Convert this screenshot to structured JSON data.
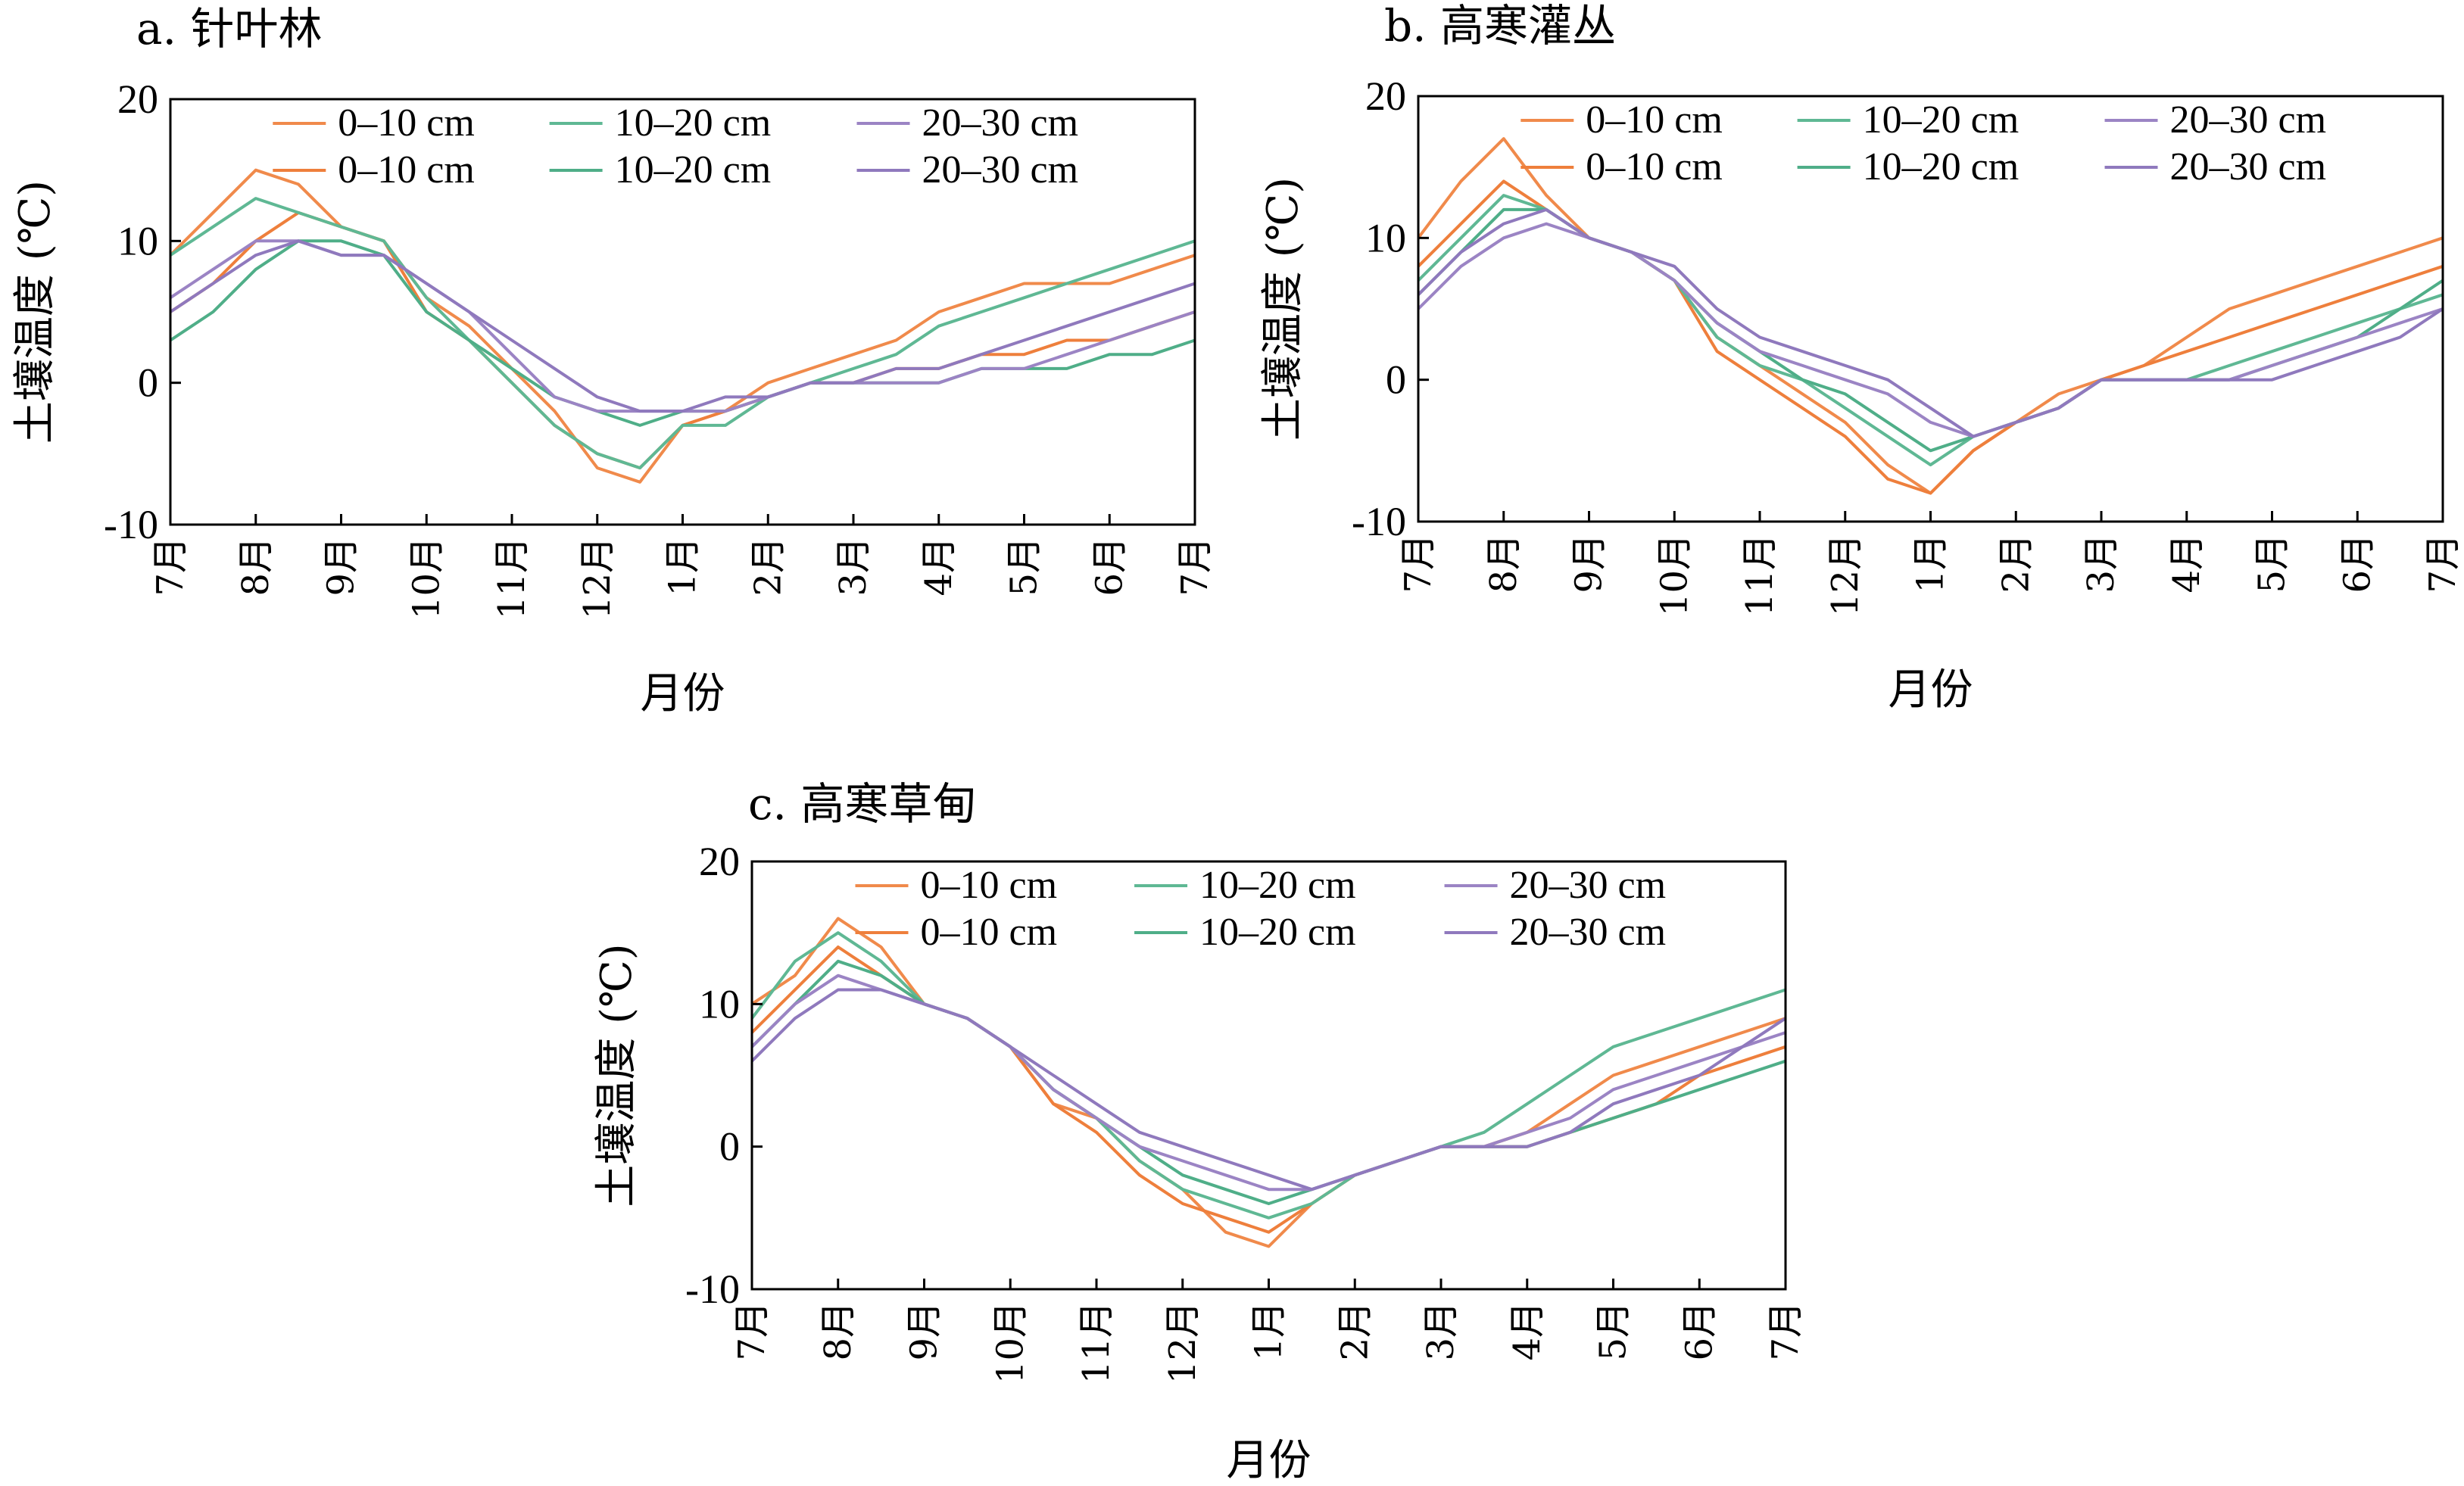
{
  "figure": {
    "xlabel": "月份",
    "ylabel": "土壤温度 (℃)"
  },
  "chart_data": [
    {
      "type": "line",
      "title": "a. 针叶林",
      "xlabel": "月份",
      "ylabel": "土壤温度 (℃)",
      "ylim": [
        -10,
        20
      ],
      "yticks": [
        -10,
        0,
        10,
        20
      ],
      "categories": [
        "7月",
        "8月",
        "9月",
        "10月",
        "11月",
        "12月",
        "1月",
        "2月",
        "3月",
        "4月",
        "5月",
        "6月",
        "7月"
      ],
      "legend": "top-right",
      "series": [
        {
          "name": "0–10 cm",
          "color": "#f08a4b",
          "x": [
            0,
            0.5,
            1,
            1.5,
            2,
            2.5,
            3,
            3.5,
            4,
            4.5,
            5,
            5.5,
            6,
            6.5,
            7,
            7.5,
            8,
            8.5,
            9,
            9.5,
            10,
            10.5,
            11,
            11.5,
            12
          ],
          "values": [
            9,
            12,
            15,
            14,
            11,
            10,
            6,
            4,
            1,
            -2,
            -6,
            -7,
            -3,
            -2,
            0,
            1,
            2,
            3,
            5,
            6,
            7,
            7,
            7,
            8,
            9
          ]
        },
        {
          "name": "0–10 cm",
          "color": "#ee7f3c",
          "x": [
            0,
            0.5,
            1,
            1.5,
            2,
            2.5,
            3,
            3.5,
            4,
            4.5,
            5,
            5.5,
            6,
            6.5,
            7,
            7.5,
            8,
            8.5,
            9,
            9.5,
            10,
            10.5,
            11,
            11.5,
            12
          ],
          "values": [
            5,
            7,
            10,
            12,
            11,
            10,
            5,
            3,
            0,
            -3,
            -5,
            -6,
            -3,
            -2,
            -1,
            0,
            0,
            1,
            1,
            2,
            2,
            3,
            3,
            4,
            5
          ]
        },
        {
          "name": "10–20 cm",
          "color": "#5fb894",
          "x": [
            0,
            0.5,
            1,
            1.5,
            2,
            2.5,
            3,
            3.5,
            4,
            4.5,
            5,
            5.5,
            6,
            6.5,
            7,
            7.5,
            8,
            8.5,
            9,
            9.5,
            10,
            10.5,
            11,
            11.5,
            12
          ],
          "values": [
            9,
            11,
            13,
            12,
            11,
            10,
            6,
            3,
            0,
            -3,
            -5,
            -6,
            -3,
            -3,
            -1,
            0,
            1,
            2,
            4,
            5,
            6,
            7,
            8,
            9,
            10
          ]
        },
        {
          "name": "10–20 cm",
          "color": "#4fae88",
          "x": [
            0,
            0.5,
            1,
            1.5,
            2,
            2.5,
            3,
            3.5,
            4,
            4.5,
            5,
            5.5,
            6,
            6.5,
            7,
            7.5,
            8,
            8.5,
            9,
            9.5,
            10,
            10.5,
            11,
            11.5,
            12
          ],
          "values": [
            3,
            5,
            8,
            10,
            10,
            9,
            5,
            3,
            1,
            -1,
            -2,
            -3,
            -2,
            -2,
            -1,
            0,
            0,
            0,
            0,
            1,
            1,
            1,
            2,
            2,
            3
          ]
        },
        {
          "name": "20–30 cm",
          "color": "#9b84c4",
          "x": [
            0,
            0.5,
            1,
            1.5,
            2,
            2.5,
            3,
            3.5,
            4,
            4.5,
            5,
            5.5,
            6,
            6.5,
            7,
            7.5,
            8,
            8.5,
            9,
            9.5,
            10,
            10.5,
            11,
            11.5,
            12
          ],
          "values": [
            6,
            8,
            10,
            10,
            9,
            9,
            7,
            5,
            2,
            -1,
            -2,
            -2,
            -2,
            -2,
            -1,
            0,
            0,
            0,
            0,
            1,
            1,
            2,
            3,
            4,
            5
          ]
        },
        {
          "name": "20–30 cm",
          "color": "#8f79bd",
          "x": [
            0,
            0.5,
            1,
            1.5,
            2,
            2.5,
            3,
            3.5,
            4,
            4.5,
            5,
            5.5,
            6,
            6.5,
            7,
            7.5,
            8,
            8.5,
            9,
            9.5,
            10,
            10.5,
            11,
            11.5,
            12
          ],
          "values": [
            5,
            7,
            9,
            10,
            9,
            9,
            7,
            5,
            3,
            1,
            -1,
            -2,
            -2,
            -1,
            -1,
            0,
            0,
            1,
            1,
            2,
            3,
            4,
            5,
            6,
            7
          ]
        }
      ]
    },
    {
      "type": "line",
      "title": "b. 高寒灌丛",
      "xlabel": "月份",
      "ylabel": "土壤温度 (℃)",
      "ylim": [
        -10,
        20
      ],
      "yticks": [
        -10,
        0,
        10,
        20
      ],
      "categories": [
        "7月",
        "8月",
        "9月",
        "10月",
        "11月",
        "12月",
        "1月",
        "2月",
        "3月",
        "4月",
        "5月",
        "6月",
        "7月"
      ],
      "legend": "top-right",
      "series": [
        {
          "name": "0–10 cm",
          "color": "#f08a4b",
          "x": [
            0,
            0.5,
            1,
            1.5,
            2,
            2.5,
            3,
            3.5,
            4,
            4.5,
            5,
            5.5,
            6,
            6.5,
            7,
            7.5,
            8,
            8.5,
            9,
            9.5,
            10,
            10.5,
            11,
            11.5,
            12
          ],
          "values": [
            10,
            14,
            17,
            13,
            10,
            9,
            7,
            3,
            1,
            -1,
            -3,
            -6,
            -8,
            -5,
            -3,
            -1,
            0,
            1,
            3,
            5,
            6,
            7,
            8,
            9,
            10
          ]
        },
        {
          "name": "0–10 cm",
          "color": "#ee7f3c",
          "x": [
            0,
            0.5,
            1,
            1.5,
            2,
            2.5,
            3,
            3.5,
            4,
            4.5,
            5,
            5.5,
            6,
            6.5,
            7,
            7.5,
            8,
            8.5,
            9,
            9.5,
            10,
            10.5,
            11,
            11.5,
            12
          ],
          "values": [
            8,
            11,
            14,
            12,
            10,
            9,
            7,
            2,
            0,
            -2,
            -4,
            -7,
            -8,
            -5,
            -3,
            -2,
            0,
            1,
            2,
            3,
            4,
            5,
            6,
            7,
            8
          ]
        },
        {
          "name": "10–20 cm",
          "color": "#5fb894",
          "x": [
            0,
            0.5,
            1,
            1.5,
            2,
            2.5,
            3,
            3.5,
            4,
            4.5,
            5,
            5.5,
            6,
            6.5,
            7,
            7.5,
            8,
            8.5,
            9,
            9.5,
            10,
            10.5,
            11,
            11.5,
            12
          ],
          "values": [
            7,
            10,
            13,
            12,
            10,
            9,
            7,
            3,
            1,
            0,
            -2,
            -4,
            -6,
            -4,
            -3,
            -2,
            0,
            0,
            0,
            1,
            2,
            3,
            4,
            5,
            6
          ]
        },
        {
          "name": "10–20 cm",
          "color": "#4fae88",
          "x": [
            0,
            0.5,
            1,
            1.5,
            2,
            2.5,
            3,
            3.5,
            4,
            4.5,
            5,
            5.5,
            6,
            6.5,
            7,
            7.5,
            8,
            8.5,
            9,
            9.5,
            10,
            10.5,
            11,
            11.5,
            12
          ],
          "values": [
            6,
            9,
            12,
            12,
            10,
            9,
            7,
            4,
            2,
            0,
            -1,
            -3,
            -5,
            -4,
            -3,
            -2,
            0,
            0,
            0,
            0,
            1,
            2,
            3,
            5,
            7
          ]
        },
        {
          "name": "20–30 cm",
          "color": "#9b84c4",
          "x": [
            0,
            0.5,
            1,
            1.5,
            2,
            2.5,
            3,
            3.5,
            4,
            4.5,
            5,
            5.5,
            6,
            6.5,
            7,
            7.5,
            8,
            8.5,
            9,
            9.5,
            10,
            10.5,
            11,
            11.5,
            12
          ],
          "values": [
            5,
            8,
            10,
            11,
            10,
            9,
            7,
            4,
            2,
            1,
            0,
            -1,
            -3,
            -4,
            -3,
            -2,
            0,
            0,
            0,
            0,
            1,
            2,
            3,
            4,
            5
          ]
        },
        {
          "name": "20–30 cm",
          "color": "#8f79bd",
          "x": [
            0,
            0.5,
            1,
            1.5,
            2,
            2.5,
            3,
            3.5,
            4,
            4.5,
            5,
            5.5,
            6,
            6.5,
            7,
            7.5,
            8,
            8.5,
            9,
            9.5,
            10,
            10.5,
            11,
            11.5,
            12
          ],
          "values": [
            6,
            9,
            11,
            12,
            10,
            9,
            8,
            5,
            3,
            2,
            1,
            0,
            -2,
            -4,
            -3,
            -2,
            0,
            0,
            0,
            0,
            0,
            1,
            2,
            3,
            5
          ]
        }
      ]
    },
    {
      "type": "line",
      "title": "c. 高寒草甸",
      "xlabel": "月份",
      "ylabel": "土壤温度 (℃)",
      "ylim": [
        -10,
        20
      ],
      "yticks": [
        -10,
        0,
        10,
        20
      ],
      "categories": [
        "7月",
        "8月",
        "9月",
        "10月",
        "11月",
        "12月",
        "1月",
        "2月",
        "3月",
        "4月",
        "5月",
        "6月",
        "7月"
      ],
      "legend": "top-right",
      "series": [
        {
          "name": "0–10 cm",
          "color": "#f08a4b",
          "x": [
            0,
            0.5,
            1,
            1.5,
            2,
            2.5,
            3,
            3.5,
            4,
            4.5,
            5,
            5.5,
            6,
            6.5,
            7,
            7.5,
            8,
            8.5,
            9,
            9.5,
            10,
            10.5,
            11,
            11.5,
            12
          ],
          "values": [
            10,
            12,
            16,
            14,
            10,
            9,
            7,
            3,
            2,
            -1,
            -3,
            -6,
            -7,
            -4,
            -2,
            -1,
            0,
            0,
            1,
            3,
            5,
            6,
            7,
            8,
            9
          ]
        },
        {
          "name": "0–10 cm",
          "color": "#ee7f3c",
          "x": [
            0,
            0.5,
            1,
            1.5,
            2,
            2.5,
            3,
            3.5,
            4,
            4.5,
            5,
            5.5,
            6,
            6.5,
            7,
            7.5,
            8,
            8.5,
            9,
            9.5,
            10,
            10.5,
            11,
            11.5,
            12
          ],
          "values": [
            8,
            11,
            14,
            12,
            10,
            9,
            7,
            3,
            1,
            -2,
            -4,
            -5,
            -6,
            -4,
            -2,
            -1,
            0,
            0,
            0,
            1,
            2,
            3,
            5,
            6,
            7
          ]
        },
        {
          "name": "10–20 cm",
          "color": "#5fb894",
          "x": [
            0,
            0.5,
            1,
            1.5,
            2,
            2.5,
            3,
            3.5,
            4,
            4.5,
            5,
            5.5,
            6,
            6.5,
            7,
            7.5,
            8,
            8.5,
            9,
            9.5,
            10,
            10.5,
            11,
            11.5,
            12
          ],
          "values": [
            9,
            13,
            15,
            13,
            10,
            9,
            7,
            4,
            2,
            -1,
            -3,
            -4,
            -5,
            -4,
            -2,
            -1,
            0,
            1,
            3,
            5,
            7,
            8,
            9,
            10,
            11
          ]
        },
        {
          "name": "10–20 cm",
          "color": "#4fae88",
          "x": [
            0,
            0.5,
            1,
            1.5,
            2,
            2.5,
            3,
            3.5,
            4,
            4.5,
            5,
            5.5,
            6,
            6.5,
            7,
            7.5,
            8,
            8.5,
            9,
            9.5,
            10,
            10.5,
            11,
            11.5,
            12
          ],
          "values": [
            7,
            10,
            13,
            12,
            10,
            9,
            7,
            4,
            2,
            0,
            -2,
            -3,
            -4,
            -3,
            -2,
            -1,
            0,
            0,
            0,
            1,
            2,
            3,
            4,
            5,
            6
          ]
        },
        {
          "name": "20–30 cm",
          "color": "#9b84c4",
          "x": [
            0,
            0.5,
            1,
            1.5,
            2,
            2.5,
            3,
            3.5,
            4,
            4.5,
            5,
            5.5,
            6,
            6.5,
            7,
            7.5,
            8,
            8.5,
            9,
            9.5,
            10,
            10.5,
            11,
            11.5,
            12
          ],
          "values": [
            7,
            10,
            12,
            11,
            10,
            9,
            7,
            4,
            2,
            0,
            -1,
            -2,
            -3,
            -3,
            -2,
            -1,
            0,
            0,
            1,
            2,
            4,
            5,
            6,
            7,
            8
          ]
        },
        {
          "name": "20–30 cm",
          "color": "#8f79bd",
          "x": [
            0,
            0.5,
            1,
            1.5,
            2,
            2.5,
            3,
            3.5,
            4,
            4.5,
            5,
            5.5,
            6,
            6.5,
            7,
            7.5,
            8,
            8.5,
            9,
            9.5,
            10,
            10.5,
            11,
            11.5,
            12
          ],
          "values": [
            6,
            9,
            11,
            11,
            10,
            9,
            7,
            5,
            3,
            1,
            0,
            -1,
            -2,
            -3,
            -2,
            -1,
            0,
            0,
            0,
            1,
            3,
            4,
            5,
            7,
            9
          ]
        }
      ]
    }
  ]
}
